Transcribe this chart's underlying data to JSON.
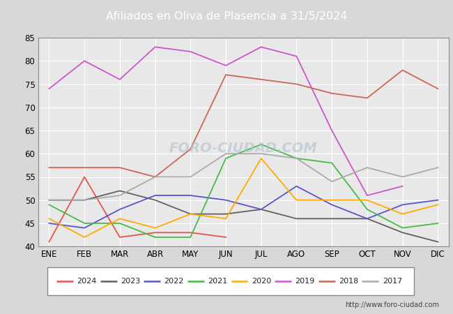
{
  "title": "Afiliados en Oliva de Plasencia a 31/5/2024",
  "title_bg_color": "#5b9bd5",
  "title_text_color": "white",
  "ylim": [
    40,
    85
  ],
  "yticks": [
    40,
    45,
    50,
    55,
    60,
    65,
    70,
    75,
    80,
    85
  ],
  "months": [
    "ENE",
    "FEB",
    "MAR",
    "ABR",
    "MAY",
    "JUN",
    "JUL",
    "AGO",
    "SEP",
    "OCT",
    "NOV",
    "DIC"
  ],
  "watermark": "http://www.foro-ciudad.com",
  "series": {
    "2024": {
      "color": "#e8534a",
      "data": [
        41,
        55,
        42,
        43,
        43,
        42,
        null,
        null,
        null,
        null,
        null,
        null
      ]
    },
    "2023": {
      "color": "#606060",
      "data": [
        50,
        50,
        52,
        50,
        47,
        47,
        48,
        46,
        46,
        46,
        43,
        41
      ]
    },
    "2022": {
      "color": "#5555cc",
      "data": [
        45,
        44,
        48,
        51,
        51,
        50,
        48,
        53,
        49,
        46,
        49,
        50
      ]
    },
    "2021": {
      "color": "#44bb44",
      "data": [
        49,
        45,
        45,
        42,
        42,
        59,
        62,
        59,
        58,
        48,
        44,
        45
      ]
    },
    "2020": {
      "color": "#ffaa00",
      "data": [
        46,
        42,
        46,
        44,
        47,
        46,
        59,
        50,
        50,
        50,
        47,
        49
      ]
    },
    "2019": {
      "color": "#cc55cc",
      "data": [
        74,
        80,
        76,
        83,
        82,
        79,
        83,
        81,
        65,
        51,
        53,
        null
      ]
    },
    "2018": {
      "color": "#cc6655",
      "data": [
        57,
        57,
        57,
        55,
        61,
        77,
        76,
        75,
        73,
        72,
        78,
        74
      ]
    },
    "2017": {
      "color": "#aaaaaa",
      "data": [
        50,
        50,
        51,
        55,
        55,
        60,
        60,
        59,
        54,
        57,
        55,
        57
      ]
    }
  },
  "legend_order": [
    "2024",
    "2023",
    "2022",
    "2021",
    "2020",
    "2019",
    "2018",
    "2017"
  ],
  "bg_color": "#d8d8d8",
  "plot_bg_color": "#e8e8e8",
  "grid_color": "#ffffff",
  "watermark_color": "#b0c0d0"
}
